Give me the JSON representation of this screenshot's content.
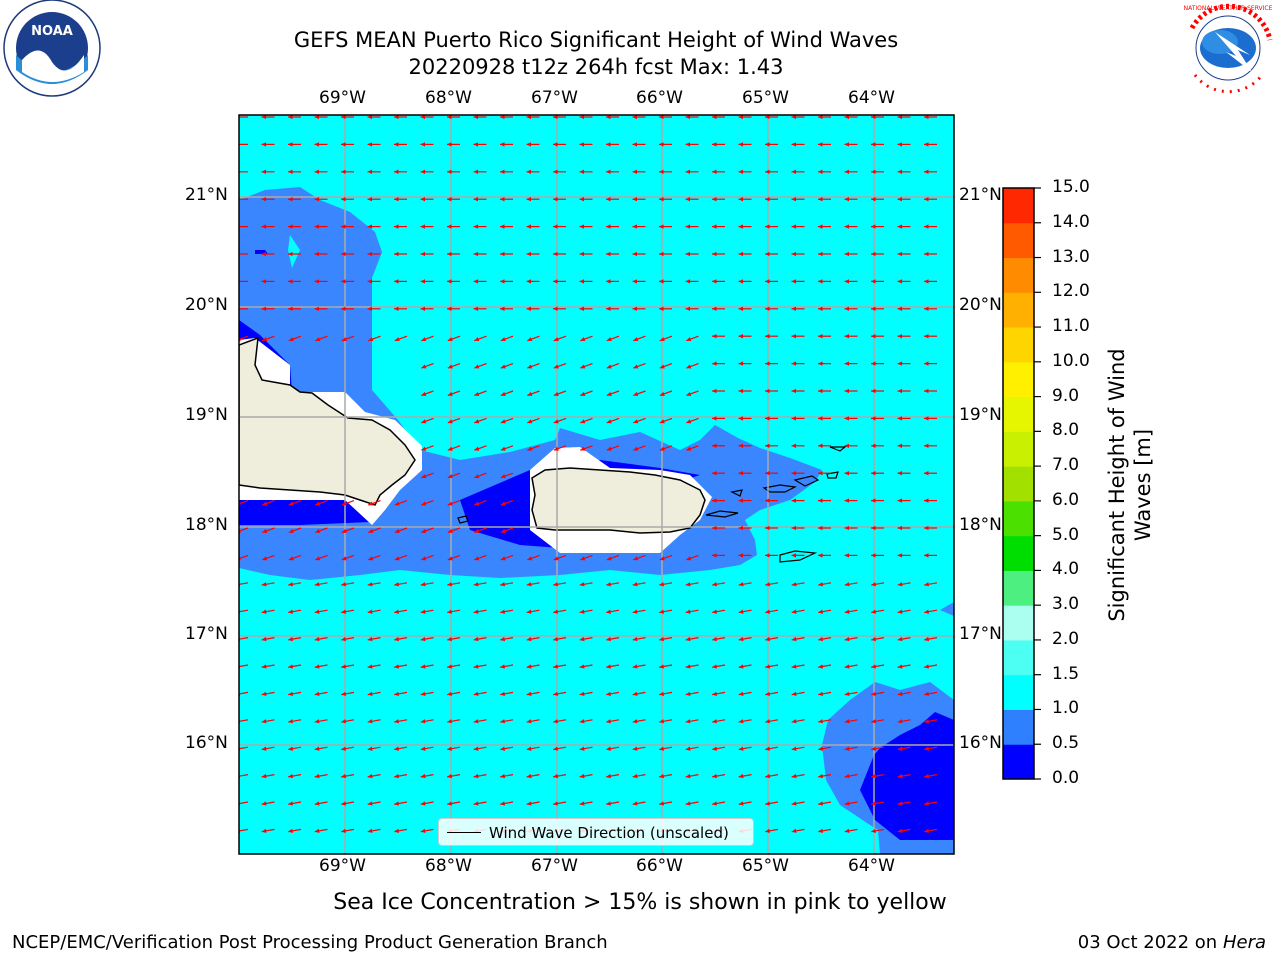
{
  "header": {
    "title_line1": "GEFS MEAN Puerto Rico Significant Height of Wind Waves",
    "title_line2": "20220928 t12z 264h fcst   Max: 1.43"
  },
  "map": {
    "lon_labels": [
      "69°W",
      "68°W",
      "67°W",
      "66°W",
      "65°W",
      "64°W"
    ],
    "lat_labels": [
      "21°N",
      "20°N",
      "19°N",
      "18°N",
      "17°N",
      "16°N"
    ],
    "legend_label": "Wind Wave Direction (unscaled)",
    "arrow_color": "#ff0000",
    "water_color_low": "#0000ff",
    "water_color_mid": "#3a86ff",
    "water_color_main": "#00ffff",
    "land_color": "#efeddc"
  },
  "colorbar": {
    "label": "Significant Height of Wind Waves [m]",
    "ticks": [
      "0.0",
      "0.5",
      "1.0",
      "1.5",
      "2.0",
      "3.0",
      "4.0",
      "5.0",
      "6.0",
      "7.0",
      "8.0",
      "9.0",
      "10.0",
      "11.0",
      "12.0",
      "13.0",
      "14.0",
      "15.0"
    ],
    "colors": [
      "#0000ff",
      "#2f80ff",
      "#00ffff",
      "#4dfff2",
      "#aafff0",
      "#4df080",
      "#00dd00",
      "#4be000",
      "#a2e000",
      "#c8f000",
      "#e6f500",
      "#fff000",
      "#ffd500",
      "#ffb000",
      "#ff8c00",
      "#ff5a00",
      "#ff2800"
    ]
  },
  "logos": {
    "noaa_text": "NOAA",
    "nws_text": "NATIONAL WEATHER SERVICE"
  },
  "note": "Sea Ice Concentration > 15% is shown in pink to yellow",
  "footer": {
    "left": "NCEP/EMC/Verification Post Processing Product Generation Branch",
    "right_date": "03 Oct 2022 on ",
    "right_host": "Hera"
  }
}
